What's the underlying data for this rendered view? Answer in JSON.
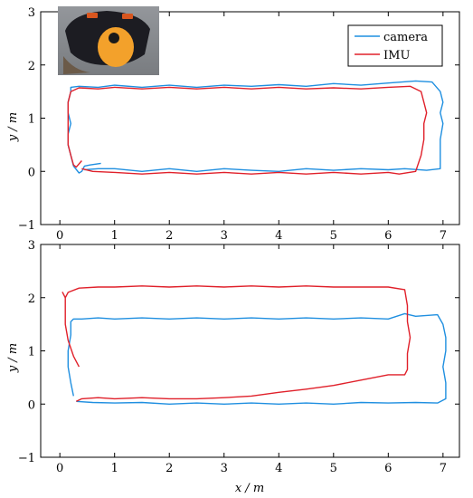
{
  "chart_data": [
    {
      "type": "line",
      "xlabel": "",
      "ylabel": "y / m",
      "xlim": [
        -0.35,
        7.3
      ],
      "ylim": [
        -1,
        3
      ],
      "xticks": [
        "0",
        "1",
        "2",
        "3",
        "4",
        "5",
        "6",
        "7"
      ],
      "yticks": [
        "−1",
        "0",
        "1",
        "2",
        "3"
      ],
      "grid": false,
      "legend": {
        "placement": "top-right",
        "entries": [
          "camera",
          "IMU"
        ]
      },
      "inset_image": "sensor-device-photo",
      "series": [
        {
          "name": "camera",
          "color": "#1f8fe0",
          "x": [
            0.75,
            0.55,
            0.45,
            0.4,
            0.35,
            0.25,
            0.2,
            0.15,
            0.15,
            0.2,
            0.15,
            0.15,
            0.2,
            0.2,
            0.35,
            0.7,
            1.0,
            1.5,
            2.0,
            2.5,
            3.0,
            3.5,
            4.0,
            4.5,
            5.0,
            5.5,
            6.0,
            6.5,
            6.8,
            6.95,
            7.0,
            6.95,
            7.0,
            6.95,
            6.95,
            6.95,
            6.7,
            6.3,
            6.0,
            5.5,
            5.0,
            4.5,
            4.0,
            3.5,
            3.0,
            2.5,
            2.0,
            1.5,
            1.0,
            0.7,
            0.45
          ],
          "y": [
            0.15,
            0.12,
            0.1,
            0.0,
            -0.03,
            0.1,
            0.3,
            0.5,
            0.7,
            0.9,
            1.1,
            1.3,
            1.5,
            1.58,
            1.6,
            1.58,
            1.62,
            1.58,
            1.62,
            1.58,
            1.62,
            1.6,
            1.63,
            1.6,
            1.65,
            1.62,
            1.66,
            1.7,
            1.68,
            1.5,
            1.3,
            1.1,
            0.9,
            0.6,
            0.3,
            0.05,
            0.02,
            0.05,
            0.03,
            0.05,
            0.02,
            0.05,
            0.0,
            0.02,
            0.05,
            0.0,
            0.05,
            0.0,
            0.05,
            0.05,
            0.03
          ]
        },
        {
          "name": "IMU",
          "color": "#e0202a",
          "x": [
            0.4,
            0.3,
            0.25,
            0.2,
            0.15,
            0.15,
            0.15,
            0.15,
            0.15,
            0.2,
            0.35,
            0.7,
            1.0,
            1.5,
            2.0,
            2.5,
            3.0,
            3.5,
            4.0,
            4.5,
            5.0,
            5.5,
            6.0,
            6.4,
            6.6,
            6.65,
            6.7,
            6.65,
            6.65,
            6.6,
            6.5,
            6.2,
            6.0,
            5.5,
            5.0,
            4.5,
            4.0,
            3.5,
            3.0,
            2.5,
            2.0,
            1.5,
            1.0,
            0.6,
            0.4
          ],
          "y": [
            0.2,
            0.08,
            0.12,
            0.3,
            0.5,
            0.7,
            0.9,
            1.1,
            1.3,
            1.5,
            1.57,
            1.55,
            1.58,
            1.55,
            1.58,
            1.55,
            1.58,
            1.55,
            1.58,
            1.55,
            1.57,
            1.55,
            1.58,
            1.6,
            1.5,
            1.3,
            1.1,
            0.9,
            0.6,
            0.3,
            0.0,
            -0.05,
            -0.02,
            -0.05,
            -0.02,
            -0.05,
            -0.02,
            -0.05,
            -0.02,
            -0.05,
            -0.02,
            -0.05,
            -0.02,
            0.0,
            0.05
          ]
        }
      ]
    },
    {
      "type": "line",
      "xlabel": "x / m",
      "ylabel": "y / m",
      "xlim": [
        -0.35,
        7.3
      ],
      "ylim": [
        -1,
        3
      ],
      "xticks": [
        "0",
        "1",
        "2",
        "3",
        "4",
        "5",
        "6",
        "7"
      ],
      "yticks": [
        "−1",
        "0",
        "1",
        "2",
        "3"
      ],
      "grid": false,
      "series": [
        {
          "name": "camera",
          "color": "#1f8fe0",
          "x": [
            0.25,
            0.2,
            0.15,
            0.15,
            0.2,
            0.2,
            0.25,
            0.4,
            0.7,
            1.0,
            1.5,
            2.0,
            2.5,
            3.0,
            3.5,
            4.0,
            4.5,
            5.0,
            5.5,
            6.0,
            6.3,
            6.5,
            6.9,
            7.0,
            7.05,
            7.05,
            7.0,
            7.05,
            7.05,
            6.9,
            6.5,
            6.0,
            5.5,
            5.0,
            4.5,
            4.0,
            3.5,
            3.0,
            2.5,
            2.0,
            1.5,
            1.0,
            0.6,
            0.3
          ],
          "y": [
            0.15,
            0.4,
            0.7,
            1.0,
            1.3,
            1.55,
            1.6,
            1.6,
            1.62,
            1.6,
            1.62,
            1.6,
            1.62,
            1.6,
            1.62,
            1.6,
            1.62,
            1.6,
            1.62,
            1.6,
            1.7,
            1.65,
            1.68,
            1.5,
            1.25,
            1.0,
            0.7,
            0.4,
            0.1,
            0.02,
            0.03,
            0.02,
            0.03,
            0.0,
            0.02,
            0.0,
            0.02,
            0.0,
            0.02,
            0.0,
            0.03,
            0.02,
            0.03,
            0.05
          ]
        },
        {
          "name": "IMU",
          "color": "#e0202a",
          "x": [
            0.35,
            0.25,
            0.15,
            0.1,
            0.1,
            0.1,
            0.05,
            0.1,
            0.15,
            0.35,
            0.7,
            1.0,
            1.5,
            2.0,
            2.5,
            3.0,
            3.5,
            4.0,
            4.5,
            5.0,
            5.5,
            6.0,
            6.3,
            6.35,
            6.35,
            6.4,
            6.35,
            6.35,
            6.3,
            6.0,
            5.5,
            5.0,
            4.5,
            4.0,
            3.5,
            3.0,
            2.5,
            2.0,
            1.5,
            1.0,
            0.7,
            0.4,
            0.3
          ],
          "y": [
            0.7,
            0.9,
            1.2,
            1.5,
            1.8,
            2.0,
            2.1,
            2.0,
            2.1,
            2.18,
            2.2,
            2.2,
            2.22,
            2.2,
            2.22,
            2.2,
            2.22,
            2.2,
            2.22,
            2.2,
            2.2,
            2.2,
            2.15,
            1.85,
            1.55,
            1.25,
            0.95,
            0.65,
            0.55,
            0.55,
            0.45,
            0.35,
            0.28,
            0.22,
            0.15,
            0.12,
            0.1,
            0.1,
            0.12,
            0.1,
            0.12,
            0.1,
            0.05
          ]
        }
      ]
    }
  ]
}
